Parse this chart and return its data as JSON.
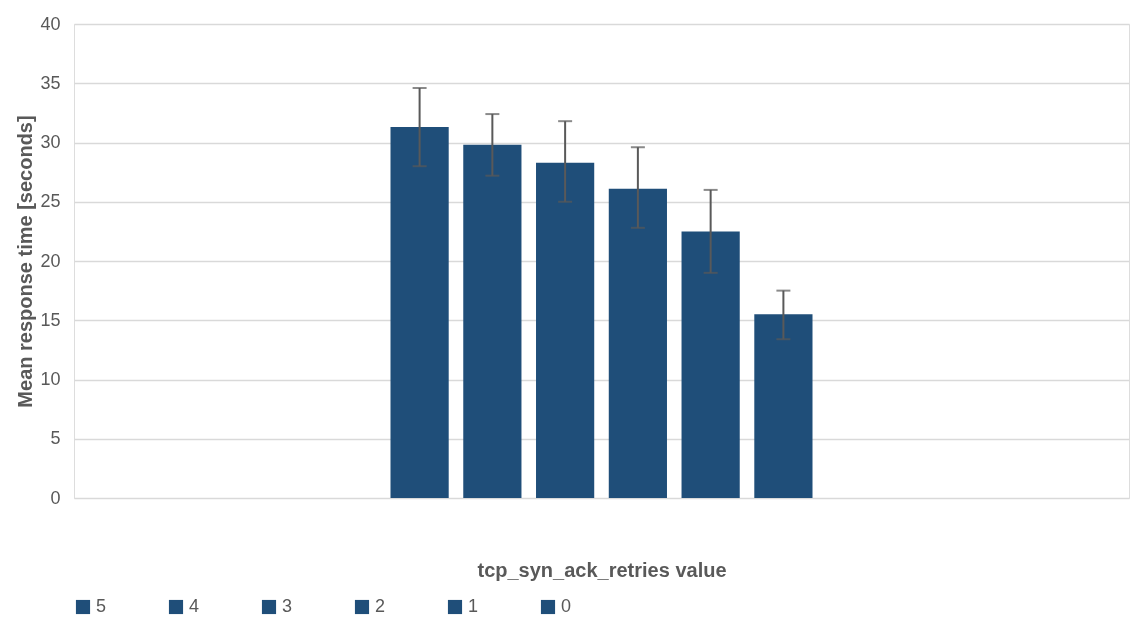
{
  "chart_data": {
    "type": "bar",
    "xlabel": "tcp_syn_ack_retries value",
    "ylabel": "Mean response time [seconds]",
    "categories": [
      null
    ],
    "series": [
      {
        "name": "5",
        "color": "#1f4e79",
        "values": [
          31.3
        ],
        "errors": [
          [
            28.0,
            34.6
          ]
        ]
      },
      {
        "name": "4",
        "color": "#1f4e79",
        "values": [
          29.8
        ],
        "errors": [
          [
            27.2,
            32.4
          ]
        ]
      },
      {
        "name": "3",
        "color": "#1f4e79",
        "values": [
          28.3
        ],
        "errors": [
          [
            25.0,
            31.8
          ]
        ]
      },
      {
        "name": "2",
        "color": "#1f4e79",
        "values": [
          26.1
        ],
        "errors": [
          [
            22.8,
            29.6
          ]
        ]
      },
      {
        "name": "1",
        "color": "#1f4e79",
        "values": [
          22.5
        ],
        "errors": [
          [
            19.0,
            26.0
          ]
        ]
      },
      {
        "name": "0",
        "color": "#1f4e79",
        "values": [
          15.5
        ],
        "errors": [
          [
            13.4,
            17.5
          ]
        ]
      }
    ],
    "ylim": [
      0,
      40
    ],
    "yticks": [
      0,
      5,
      10,
      15,
      20,
      25,
      30,
      35,
      40
    ],
    "grid": "y",
    "legend": "bottom"
  }
}
